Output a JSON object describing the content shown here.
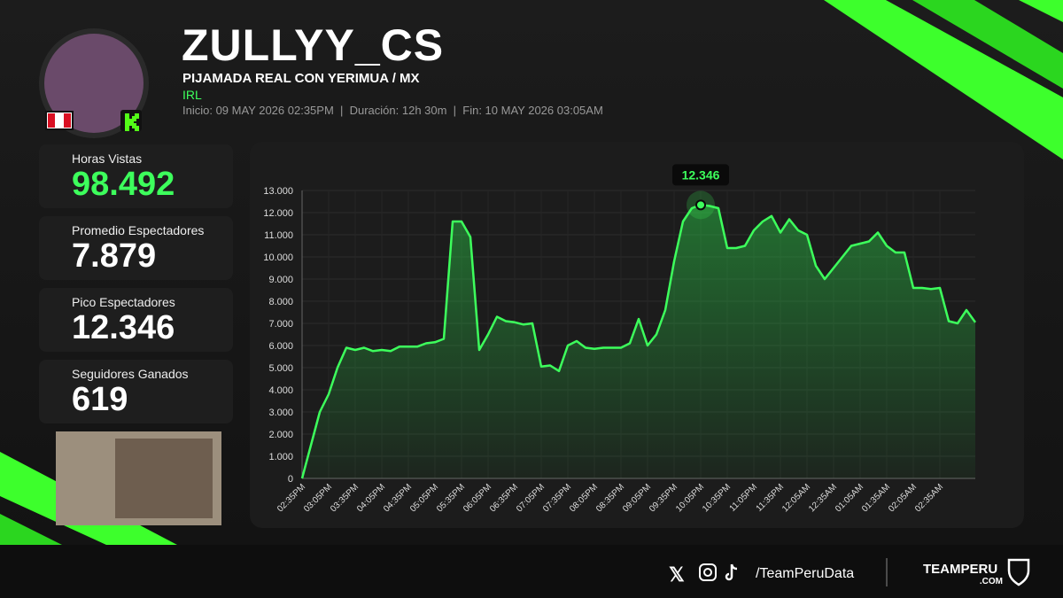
{
  "header": {
    "name": "ZULLYY_CS",
    "stream_title": "PIJAMADA REAL CON YERIMUA / MX",
    "category": "IRL",
    "meta": "Inicio: 09 MAY 2026 02:35PM  |  Duración: 12h 30m  |  Fin: 10 MAY 2026 03:05AM"
  },
  "stats": [
    {
      "label": "Horas Vistas",
      "value": "98.492"
    },
    {
      "label": "Promedio Espectadores",
      "value": "7.879"
    },
    {
      "label": "Pico Espectadores",
      "value": "12.346"
    },
    {
      "label": "Seguidores Ganados",
      "value": "619"
    }
  ],
  "footer": {
    "handle": "/TeamPeruData",
    "brand": "TEAMPERU",
    "brand_suffix": ".COM"
  },
  "chart_data": {
    "type": "line",
    "color": "#3dff5c",
    "grid": true,
    "categories": [
      "02:35PM",
      null,
      null,
      "03:05PM",
      null,
      null,
      "03:35PM",
      null,
      null,
      "04:05PM",
      null,
      null,
      "04:35PM",
      null,
      null,
      "05:05PM",
      null,
      null,
      "05:35PM",
      null,
      null,
      "06:05PM",
      null,
      null,
      "06:35PM",
      null,
      null,
      "07:05PM",
      null,
      null,
      "07:35PM",
      null,
      null,
      "08:05PM",
      null,
      null,
      "08:35PM",
      null,
      null,
      "09:05PM",
      null,
      null,
      "09:35PM",
      null,
      null,
      "10:05PM",
      null,
      null,
      "10:35PM",
      null,
      null,
      "11:05PM",
      null,
      null,
      "11:35PM",
      null,
      null,
      "12:05AM",
      null,
      null,
      "12:35AM",
      null,
      null,
      "01:05AM",
      null,
      null,
      "01:35AM",
      null,
      null,
      "02:05AM",
      null,
      null,
      "02:35AM",
      null,
      null,
      null,
      null
    ],
    "values": [
      0,
      1500,
      3000,
      3800,
      5000,
      5900,
      5800,
      5900,
      5750,
      5800,
      5750,
      5950,
      5950,
      5950,
      6100,
      6150,
      6300,
      11600,
      11600,
      10900,
      5800,
      6500,
      7300,
      7100,
      7050,
      6950,
      7000,
      5050,
      5100,
      4850,
      6000,
      6200,
      5900,
      5850,
      5900,
      5900,
      5900,
      6100,
      7200,
      6000,
      6500,
      7600,
      9800,
      11600,
      12200,
      12346,
      12300,
      12200,
      10400,
      10400,
      10500,
      11200,
      11600,
      11850,
      11100,
      11700,
      11200,
      11000,
      9600,
      9000,
      9500,
      10000,
      10500,
      10600,
      10700,
      11100,
      10500,
      10200,
      10200,
      8600,
      8600,
      8550,
      8600,
      7100,
      7000,
      7600,
      7050
    ],
    "peak": {
      "value": 12346,
      "label": "12.346"
    },
    "ylim": [
      0,
      13000
    ],
    "yticks": [
      0,
      {
        "value": 1000,
        "label": "1.000"
      },
      {
        "value": 2000,
        "label": "2.000"
      },
      {
        "value": 3000,
        "label": "3.000"
      },
      {
        "value": 4000,
        "label": "4.000"
      },
      {
        "value": 5000,
        "label": "5.000"
      },
      {
        "value": 6000,
        "label": "6.000"
      },
      {
        "value": 7000,
        "label": "7.000"
      },
      {
        "value": 8000,
        "label": "8.000"
      },
      {
        "value": 9000,
        "label": "9.000"
      },
      {
        "value": 10000,
        "label": "10.000"
      },
      {
        "value": 11000,
        "label": "11.000"
      },
      {
        "value": 12000,
        "label": "12.000"
      },
      {
        "value": 13000,
        "label": "13.000"
      }
    ]
  }
}
